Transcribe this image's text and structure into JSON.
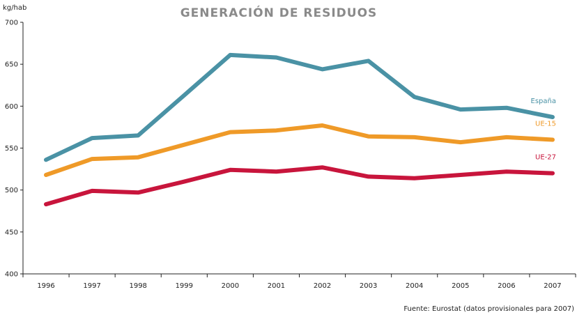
{
  "chart_data": {
    "type": "line",
    "title": "GENERACIÓN DE RESIDUOS",
    "ylabel": "kg/hab",
    "xlabel": "",
    "ylim": [
      400,
      700
    ],
    "yticks": [
      400,
      450,
      500,
      550,
      600,
      650,
      700
    ],
    "x": [
      "1996",
      "1997",
      "1998",
      "1999",
      "2000",
      "2001",
      "2002",
      "2003",
      "2004",
      "2005",
      "2006",
      "2007"
    ],
    "grid": false,
    "series": [
      {
        "name": "España",
        "color": "#4a92a5",
        "values": [
          536,
          562,
          565,
          613,
          661,
          658,
          644,
          654,
          611,
          596,
          598,
          587
        ]
      },
      {
        "name": "UE-15",
        "color": "#ef9a28",
        "values": [
          518,
          537,
          539,
          554,
          569,
          571,
          577,
          564,
          563,
          557,
          563,
          560
        ]
      },
      {
        "name": "UE-27",
        "color": "#c8153c",
        "values": [
          483,
          499,
          497,
          510,
          524,
          522,
          527,
          516,
          514,
          518,
          522,
          520
        ]
      }
    ],
    "source": "Fuente: Eurostat (datos provisionales para 2007)"
  }
}
